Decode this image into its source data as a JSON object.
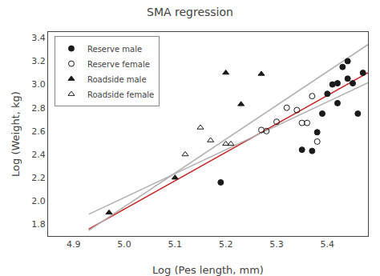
{
  "chart_data": {
    "type": "scatter",
    "title": "SMA regression",
    "xlabel": "Log (Pes length, mm)",
    "ylabel": "Log (Weight, kg)",
    "xlim": [
      4.85,
      5.48
    ],
    "ylim": [
      1.7,
      3.45
    ],
    "xticks": [
      4.9,
      {
        "value": 5.0,
        "label": "5.0"
      },
      5.1,
      5.2,
      5.3,
      5.4
    ],
    "yticks": [
      1.8,
      {
        "value": 2.0,
        "label": "2.0"
      },
      2.2,
      2.4,
      2.6,
      2.8,
      {
        "value": 3.0,
        "label": "3.0"
      },
      3.2,
      3.4
    ],
    "grid": false,
    "legend": "upper left",
    "series": [
      {
        "type": "line",
        "color": "#cc2222",
        "x": [
          4.93,
          5.48
        ],
        "values": [
          1.7592,
          3.1012
        ]
      },
      {
        "type": "line",
        "color": "#b0b0b0",
        "x": [
          4.93,
          5.48
        ],
        "values": [
          1.747,
          3.342
        ]
      },
      {
        "type": "line",
        "color": "#b0b0b0",
        "x": [
          4.93,
          5.48
        ],
        "values": [
          1.8865,
          3.014
        ]
      },
      {
        "name": "Reserve male",
        "type": "scatter",
        "marker": "circle",
        "color": "#1a1a1a",
        "x": [
          5.19,
          5.35,
          5.37,
          5.38,
          5.39,
          5.4,
          5.41,
          5.42,
          5.42,
          5.43,
          5.44,
          5.44,
          5.45,
          5.46,
          5.47
        ],
        "values": [
          2.16,
          2.44,
          2.43,
          2.59,
          2.75,
          2.92,
          3.0,
          3.01,
          2.84,
          3.15,
          3.2,
          3.05,
          3.01,
          2.75,
          3.1
        ]
      },
      {
        "name": "Reserve female",
        "type": "scatter",
        "marker": "circle-open",
        "color": "#1a1a1a",
        "x": [
          5.27,
          5.28,
          5.3,
          5.32,
          5.34,
          5.35,
          5.36,
          5.37,
          5.38
        ],
        "values": [
          2.61,
          2.6,
          2.68,
          2.8,
          2.78,
          2.67,
          2.67,
          2.9,
          2.51
        ]
      },
      {
        "name": "Roadside male",
        "type": "scatter",
        "marker": "triangle-up",
        "color": "#1a1a1a",
        "x": [
          4.97,
          5.1,
          5.2,
          5.23,
          5.27
        ],
        "values": [
          1.9,
          2.2,
          3.1,
          2.83,
          3.09
        ]
      },
      {
        "name": "Roadside female",
        "type": "scatter",
        "marker": "triangle-up-open",
        "color": "#1a1a1a",
        "x": [
          5.12,
          5.15,
          5.17,
          5.2,
          5.21
        ],
        "values": [
          2.4,
          2.63,
          2.52,
          2.49,
          2.49
        ]
      }
    ]
  }
}
